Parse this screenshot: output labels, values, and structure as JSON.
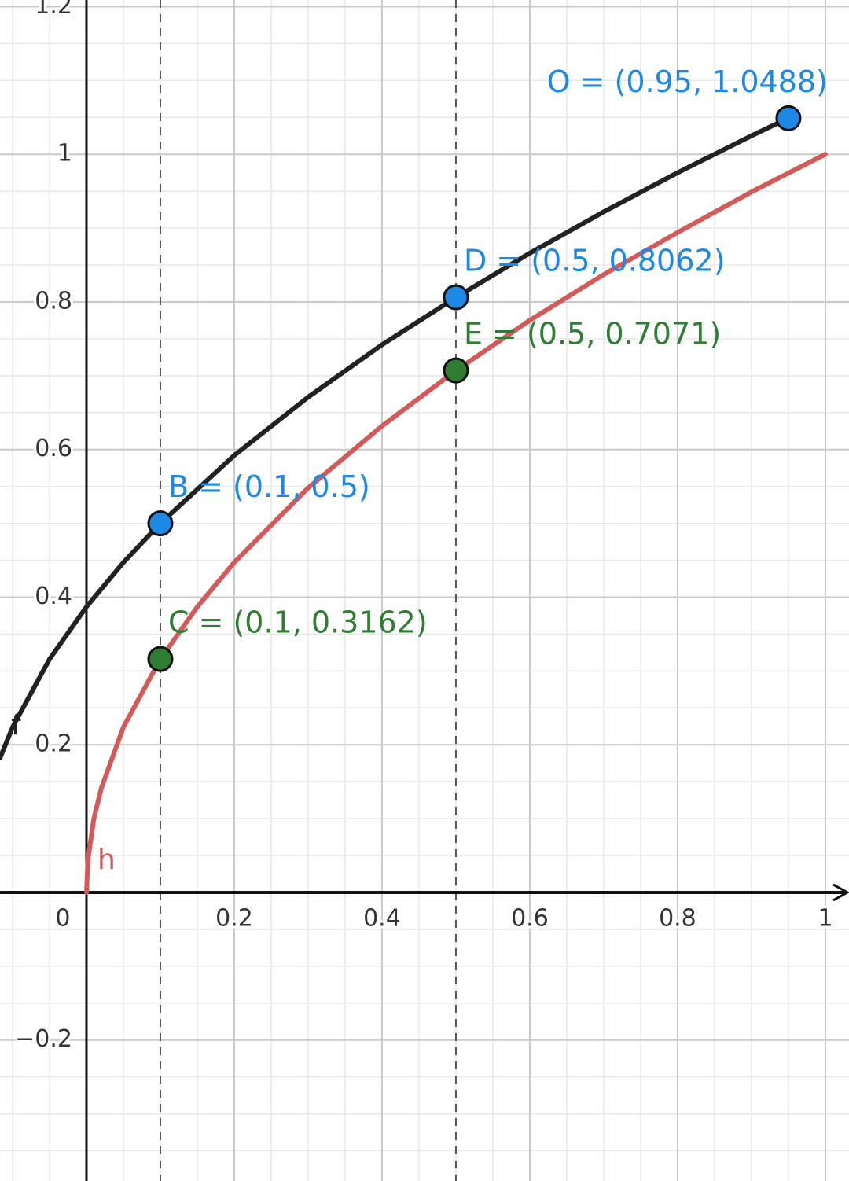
{
  "chart_data": {
    "type": "line",
    "xlim": [
      -0.117,
      1.032
    ],
    "ylim": [
      -0.391,
      1.209
    ],
    "xticks": [
      0,
      0.2,
      0.4,
      0.6,
      0.8,
      1
    ],
    "yticks": [
      {
        "value": -0.2,
        "label": "−0.2"
      },
      0.2,
      0.4,
      0.6,
      0.8,
      1,
      1.2
    ],
    "grid": true,
    "series": [
      {
        "name": "f",
        "color": "#222222",
        "x": [
          -0.117,
          -0.1,
          -0.05,
          0,
          0.05,
          0.1,
          0.2,
          0.3,
          0.4,
          0.5,
          0.6,
          0.7,
          0.8,
          0.9,
          0.95
        ],
        "values": [
          0.182,
          0.224,
          0.316,
          0.387,
          0.447,
          0.5,
          0.592,
          0.671,
          0.742,
          0.806,
          0.866,
          0.922,
          0.975,
          1.025,
          1.049
        ]
      },
      {
        "name": "h",
        "color": "#d45a5a",
        "x": [
          0,
          0.002,
          0.01,
          0.02,
          0.05,
          0.1,
          0.15,
          0.2,
          0.3,
          0.4,
          0.5,
          0.6,
          0.7,
          0.8,
          0.9,
          1
        ],
        "values": [
          0,
          0.045,
          0.1,
          0.141,
          0.224,
          0.316,
          0.387,
          0.447,
          0.548,
          0.632,
          0.707,
          0.775,
          0.837,
          0.894,
          0.949,
          1
        ]
      }
    ],
    "points": [
      {
        "label": "O = (0.95, 1.0488)",
        "x": 0.95,
        "y": 1.0488,
        "color": "#1e88e5"
      },
      {
        "label": "D = (0.5, 0.8062)",
        "x": 0.5,
        "y": 0.8062,
        "color": "#1e88e5"
      },
      {
        "label": "E = (0.5, 0.7071)",
        "x": 0.5,
        "y": 0.7071,
        "color": "#2e7d32"
      },
      {
        "label": "B = (0.1, 0.5)",
        "x": 0.1,
        "y": 0.5,
        "color": "#1e88e5"
      },
      {
        "label": "C = (0.1, 0.3162)",
        "x": 0.1,
        "y": 0.3162,
        "color": "#2e7d32"
      }
    ],
    "dashed_lines": [
      0.1,
      0.5
    ]
  }
}
